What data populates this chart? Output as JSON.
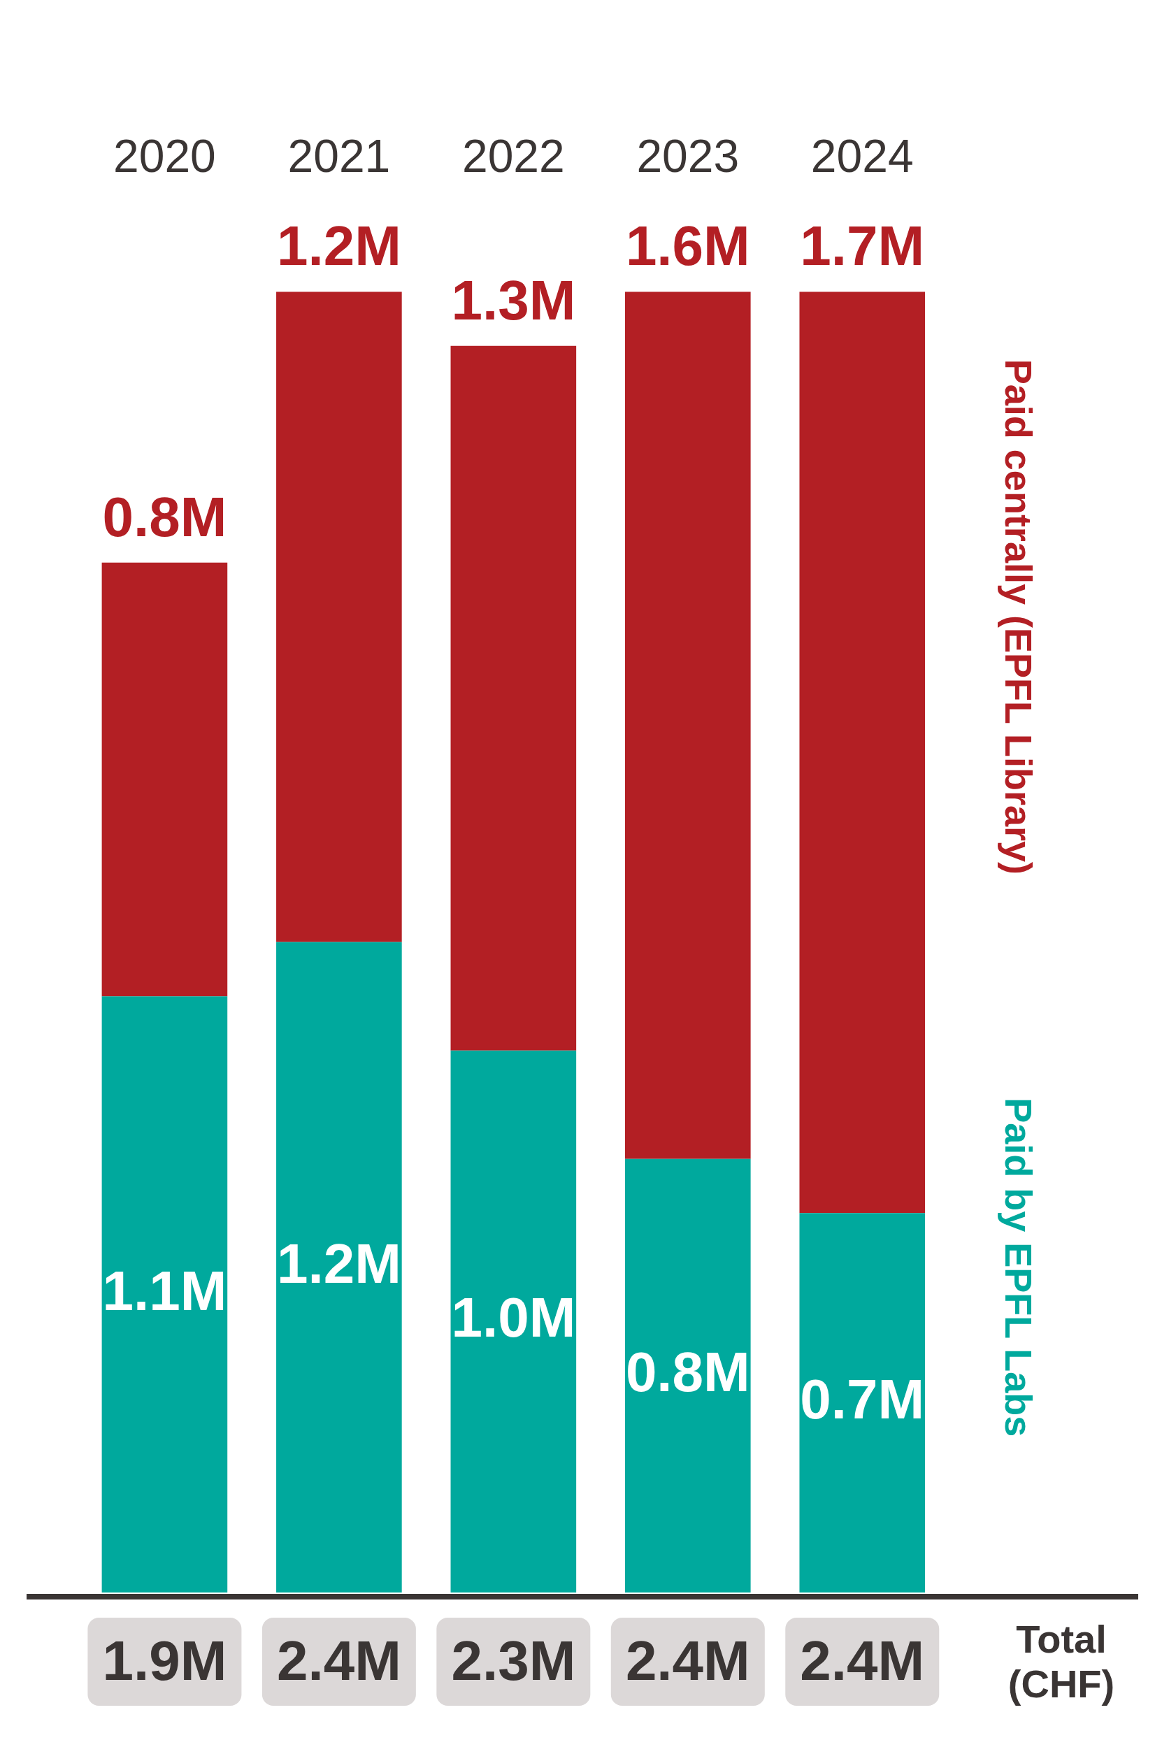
{
  "chart_data": {
    "type": "bar",
    "categories": [
      "2020",
      "2021",
      "2022",
      "2023",
      "2024"
    ],
    "series": [
      {
        "name": "Paid by EPFL Labs",
        "color": "#00a99d",
        "values": [
          1.1,
          1.2,
          1.0,
          0.8,
          0.7
        ],
        "value_labels": [
          "1.1M",
          "1.2M",
          "1.0M",
          "0.8M",
          "0.7M"
        ]
      },
      {
        "name": "Paid centrally (EPFL Library)",
        "color": "#b31f24",
        "values": [
          0.8,
          1.2,
          1.3,
          1.6,
          1.7
        ],
        "value_labels": [
          "0.8M",
          "1.2M",
          "1.3M",
          "1.6M",
          "1.7M"
        ]
      }
    ],
    "totals": [
      "1.9M",
      "2.4M",
      "2.3M",
      "2.4M",
      "2.4M"
    ],
    "annotations": [
      "Total (CHF)"
    ],
    "stacked": true,
    "legend": false,
    "grid": false
  }
}
